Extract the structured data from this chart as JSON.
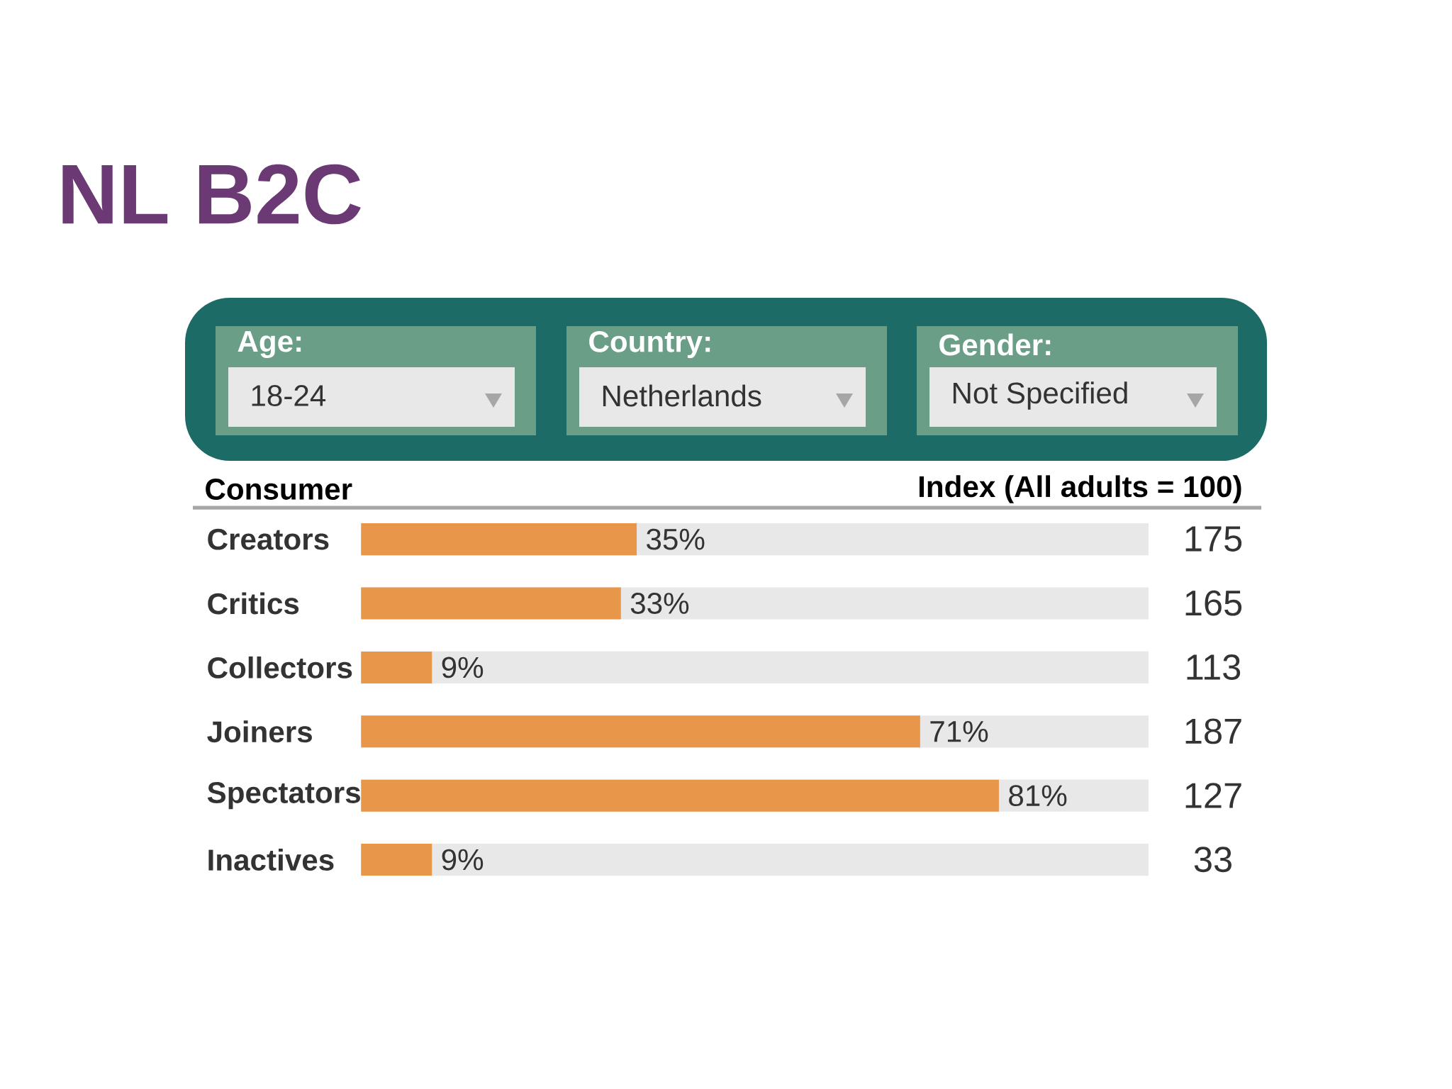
{
  "chart_data": {
    "type": "bar",
    "orientation": "horizontal",
    "title": "NL B2C",
    "categories": [
      "Creators",
      "Critics",
      "Collectors",
      "Joiners",
      "Spectators",
      "Inactives"
    ],
    "values": [
      35,
      33,
      9,
      71,
      81,
      9
    ],
    "value_labels": [
      "35%",
      "33%",
      "9%",
      "71%",
      "81%",
      "9%"
    ],
    "color": "#e8964a",
    "xlim": [
      0,
      100
    ],
    "tick_labels": "y",
    "annotations": [
      "Age:",
      "18-24",
      "Country:",
      "Netherlands",
      "Gender:",
      "Not Specified",
      "Consumer",
      "Index (All adults = 100)",
      "175",
      "165",
      "113",
      "187",
      "127",
      "33"
    ]
  }
}
